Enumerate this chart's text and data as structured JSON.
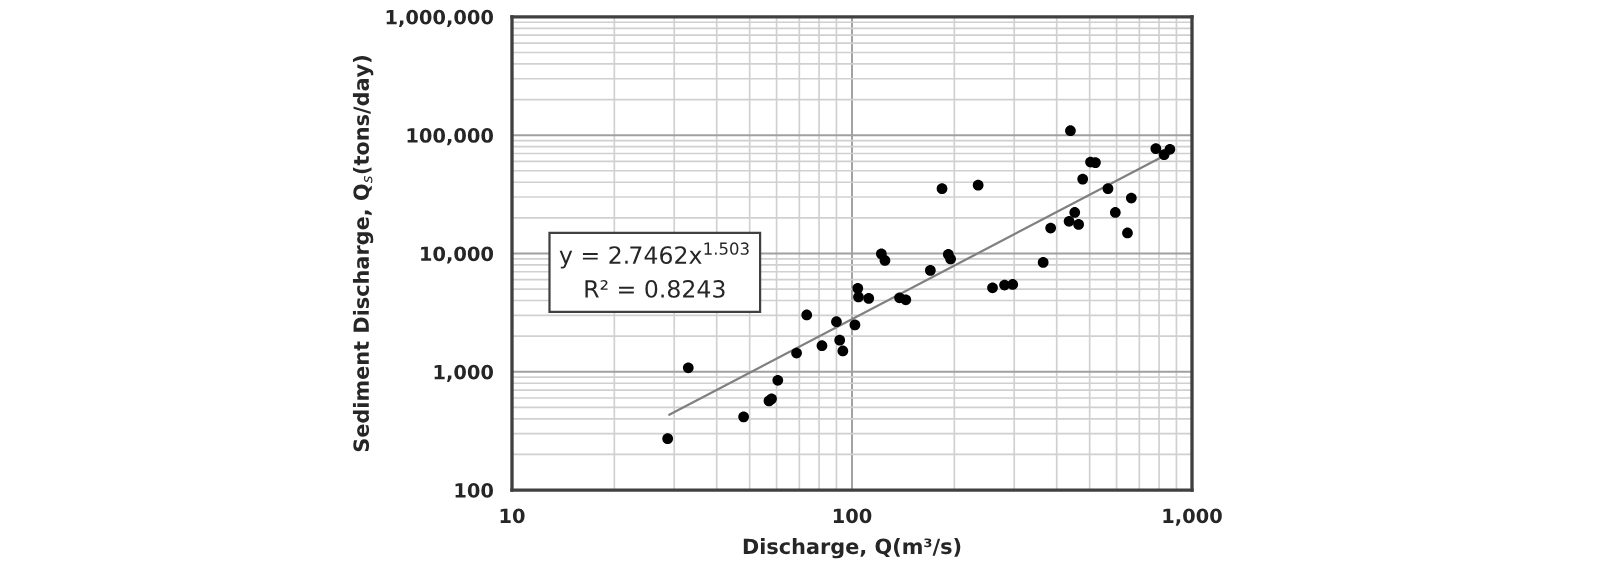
{
  "chart_data": {
    "type": "scatter",
    "xlabel": "Discharge, Q(m³/s)",
    "ylabel": "Sediment Discharge, Q$_{s}$(tons/day)",
    "annotations": [
      "y = 2.7462x$^{1.503}$",
      "R² = 0.8243"
    ],
    "log": "xy",
    "grid": true,
    "marker": "circle",
    "xlim": [
      10,
      1000
    ],
    "xticks": [
      10,
      100,
      {
        "value": 1000,
        "label": "1,000"
      }
    ],
    "ylim": [
      100,
      1000000
    ],
    "yticks": [
      100,
      {
        "value": 1000,
        "label": "1,000"
      },
      {
        "value": 10000,
        "label": "10,000"
      },
      {
        "value": 100000,
        "label": "100,000"
      },
      {
        "value": 1000000,
        "label": "1,000,000"
      }
    ],
    "series": [
      {
        "color": "#000000",
        "x": [
          28.7,
          33,
          48,
          57,
          58,
          60.5,
          68.7,
          73.6,
          81.6,
          90,
          92,
          94,
          102,
          104,
          104.5,
          112,
          122,
          125,
          138,
          144,
          170,
          184,
          192,
          195,
          235,
          259,
          281,
          297,
          365,
          384,
          439,
          435,
          452,
          464,
          477,
          503,
          520,
          566,
          595,
          646,
          663,
          783,
          828,
          861
        ],
        "values": [
          272,
          1080,
          416,
          567,
          590,
          847,
          1440,
          3020,
          1660,
          2650,
          1850,
          1500,
          2490,
          5070,
          4290,
          4170,
          9930,
          8730,
          4220,
          4060,
          7190,
          35300,
          9820,
          8980,
          37800,
          5130,
          5410,
          5470,
          8400,
          16400,
          109000,
          18700,
          22200,
          17600,
          42500,
          59300,
          58600,
          35300,
          22200,
          14900,
          29400,
          76900,
          68400,
          76000
        ]
      },
      {
        "type": "line",
        "color": "#808080",
        "marker": "none",
        "x": [
          29,
          870
        ],
        "values": [
          433,
          72000
        ]
      }
    ]
  }
}
